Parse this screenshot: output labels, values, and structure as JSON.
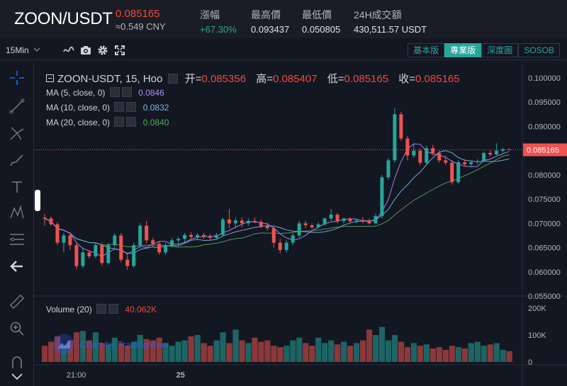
{
  "header": {
    "pair": "ZOON/USDT",
    "last_price": "0.085165",
    "cny_price": "≈0.549 CNY",
    "stats": [
      {
        "label": "漲幅",
        "value": "+67.30%",
        "positive": true
      },
      {
        "label": "最高價",
        "value": "0.093437",
        "positive": false
      },
      {
        "label": "最低價",
        "value": "0.050805",
        "positive": false
      },
      {
        "label": "24H成交額",
        "value": "430,511.57 USDT",
        "positive": false
      }
    ]
  },
  "toolbar": {
    "interval": "15Min",
    "icons": [
      "line-chart-icon",
      "camera-icon",
      "gear-icon",
      "fullscreen-icon"
    ],
    "views": [
      {
        "label": "基本版",
        "active": false
      },
      {
        "label": "專業版",
        "active": true
      },
      {
        "label": "深度圖",
        "active": false
      },
      {
        "label": "SOSOB",
        "active": false
      }
    ]
  },
  "left_tools": [
    "crosshair-icon",
    "trend-line-icon",
    "pitchfork-icon",
    "brush-icon",
    "text-icon",
    "pattern-icon",
    "fib-icon",
    "back-arrow-icon",
    "ruler-icon",
    "zoom-in-icon",
    "magnet-icon",
    "chevron-down-icon"
  ],
  "legend": {
    "symbol": "ZOON-USDT, 15, Hoo",
    "open_label": "开=",
    "open": "0.085356",
    "high_label": "高=",
    "high": "0.085407",
    "low_label": "低=",
    "low": "0.085165",
    "close_label": "收=",
    "close": "0.085165",
    "ma5_label": "MA (5, close, 0)",
    "ma5": "0.0846",
    "ma10_label": "MA (10, close, 0)",
    "ma10": "0.0832",
    "ma20_label": "MA (20, close, 0)",
    "ma20": "0.0840",
    "volume_label": "Volume (20)",
    "volume": "40.062K"
  },
  "watermark": "Chart by TradingView",
  "price_axis": {
    "ticks": [
      "0.100000",
      "0.095000",
      "0.090000",
      "0.085000",
      "0.080000",
      "0.075000",
      "0.070000",
      "0.065000",
      "0.060000",
      "0.055000"
    ],
    "current_label": "0.085165"
  },
  "volume_axis": {
    "ticks": [
      "200K",
      "100K",
      "0"
    ]
  },
  "time_axis": {
    "ticks": [
      {
        "label": "21:00",
        "i": 5
      },
      {
        "label": "25",
        "i": 21
      }
    ]
  },
  "colors": {
    "up": "#26a69a",
    "down": "#ef5350",
    "ma5": "#b58bff",
    "ma10": "#7cb6e6",
    "ma20": "#53a95a"
  },
  "chart_data": {
    "type": "candlestick",
    "price_range": [
      0.055,
      0.1
    ],
    "volume_range": [
      0,
      200000
    ],
    "current_price": 0.085165,
    "candles": [
      {
        "o": 0.0712,
        "h": 0.072,
        "l": 0.0695,
        "c": 0.071,
        "v": 60000
      },
      {
        "o": 0.071,
        "h": 0.0714,
        "l": 0.0695,
        "c": 0.0698,
        "v": 75000
      },
      {
        "o": 0.0698,
        "h": 0.0702,
        "l": 0.0655,
        "c": 0.066,
        "v": 95000
      },
      {
        "o": 0.066,
        "h": 0.068,
        "l": 0.064,
        "c": 0.0675,
        "v": 60000
      },
      {
        "o": 0.0675,
        "h": 0.0682,
        "l": 0.0645,
        "c": 0.0655,
        "v": 80000
      },
      {
        "o": 0.0655,
        "h": 0.066,
        "l": 0.0605,
        "c": 0.0612,
        "v": 110000
      },
      {
        "o": 0.0612,
        "h": 0.065,
        "l": 0.0608,
        "c": 0.064,
        "v": 115000
      },
      {
        "o": 0.064,
        "h": 0.0645,
        "l": 0.0628,
        "c": 0.0632,
        "v": 80000
      },
      {
        "o": 0.0632,
        "h": 0.066,
        "l": 0.0628,
        "c": 0.0655,
        "v": 110000
      },
      {
        "o": 0.0655,
        "h": 0.066,
        "l": 0.0612,
        "c": 0.0618,
        "v": 70000
      },
      {
        "o": 0.0618,
        "h": 0.066,
        "l": 0.0615,
        "c": 0.0655,
        "v": 65000
      },
      {
        "o": 0.0655,
        "h": 0.068,
        "l": 0.065,
        "c": 0.0675,
        "v": 90000
      },
      {
        "o": 0.0675,
        "h": 0.068,
        "l": 0.062,
        "c": 0.0625,
        "v": 70000
      },
      {
        "o": 0.0625,
        "h": 0.064,
        "l": 0.0605,
        "c": 0.0612,
        "v": 60000
      },
      {
        "o": 0.0612,
        "h": 0.066,
        "l": 0.0608,
        "c": 0.0655,
        "v": 75000
      },
      {
        "o": 0.0655,
        "h": 0.07,
        "l": 0.065,
        "c": 0.0695,
        "v": 100000
      },
      {
        "o": 0.0695,
        "h": 0.0705,
        "l": 0.066,
        "c": 0.0665,
        "v": 85000
      },
      {
        "o": 0.0665,
        "h": 0.067,
        "l": 0.0652,
        "c": 0.0658,
        "v": 80000
      },
      {
        "o": 0.0658,
        "h": 0.0662,
        "l": 0.0635,
        "c": 0.064,
        "v": 90000
      },
      {
        "o": 0.064,
        "h": 0.066,
        "l": 0.0635,
        "c": 0.0655,
        "v": 70000
      },
      {
        "o": 0.0655,
        "h": 0.067,
        "l": 0.065,
        "c": 0.0665,
        "v": 60000
      },
      {
        "o": 0.0665,
        "h": 0.0672,
        "l": 0.0655,
        "c": 0.0668,
        "v": 75000
      },
      {
        "o": 0.0668,
        "h": 0.068,
        "l": 0.0662,
        "c": 0.0676,
        "v": 80000
      },
      {
        "o": 0.0676,
        "h": 0.0682,
        "l": 0.0668,
        "c": 0.0672,
        "v": 95000
      },
      {
        "o": 0.0672,
        "h": 0.068,
        "l": 0.0665,
        "c": 0.0676,
        "v": 100000
      },
      {
        "o": 0.0676,
        "h": 0.068,
        "l": 0.0668,
        "c": 0.0672,
        "v": 70000
      },
      {
        "o": 0.0672,
        "h": 0.0678,
        "l": 0.0665,
        "c": 0.067,
        "v": 60000
      },
      {
        "o": 0.067,
        "h": 0.068,
        "l": 0.0668,
        "c": 0.0676,
        "v": 80000
      },
      {
        "o": 0.0676,
        "h": 0.0712,
        "l": 0.0672,
        "c": 0.0708,
        "v": 110000
      },
      {
        "o": 0.0708,
        "h": 0.073,
        "l": 0.069,
        "c": 0.07,
        "v": 70000
      },
      {
        "o": 0.07,
        "h": 0.0712,
        "l": 0.069,
        "c": 0.0706,
        "v": 120000
      },
      {
        "o": 0.0706,
        "h": 0.0712,
        "l": 0.0692,
        "c": 0.07,
        "v": 80000
      },
      {
        "o": 0.07,
        "h": 0.071,
        "l": 0.0695,
        "c": 0.0705,
        "v": 70000
      },
      {
        "o": 0.0705,
        "h": 0.0712,
        "l": 0.07,
        "c": 0.0703,
        "v": 90000
      },
      {
        "o": 0.0703,
        "h": 0.0708,
        "l": 0.069,
        "c": 0.0694,
        "v": 75000
      },
      {
        "o": 0.0694,
        "h": 0.0702,
        "l": 0.0685,
        "c": 0.069,
        "v": 80000
      },
      {
        "o": 0.069,
        "h": 0.0692,
        "l": 0.065,
        "c": 0.066,
        "v": 60000
      },
      {
        "o": 0.066,
        "h": 0.0668,
        "l": 0.0638,
        "c": 0.0645,
        "v": 55000
      },
      {
        "o": 0.0645,
        "h": 0.0665,
        "l": 0.064,
        "c": 0.066,
        "v": 60000
      },
      {
        "o": 0.066,
        "h": 0.068,
        "l": 0.0655,
        "c": 0.0675,
        "v": 80000
      },
      {
        "o": 0.0675,
        "h": 0.0705,
        "l": 0.067,
        "c": 0.07,
        "v": 90000
      },
      {
        "o": 0.07,
        "h": 0.0705,
        "l": 0.069,
        "c": 0.0696,
        "v": 70000
      },
      {
        "o": 0.0696,
        "h": 0.07,
        "l": 0.0688,
        "c": 0.0692,
        "v": 60000
      },
      {
        "o": 0.0692,
        "h": 0.0702,
        "l": 0.069,
        "c": 0.0698,
        "v": 90000
      },
      {
        "o": 0.0698,
        "h": 0.0712,
        "l": 0.0695,
        "c": 0.071,
        "v": 70000
      },
      {
        "o": 0.071,
        "h": 0.073,
        "l": 0.0705,
        "c": 0.0718,
        "v": 80000
      },
      {
        "o": 0.0718,
        "h": 0.0722,
        "l": 0.07,
        "c": 0.0705,
        "v": 65000
      },
      {
        "o": 0.0705,
        "h": 0.0712,
        "l": 0.07,
        "c": 0.071,
        "v": 75000
      },
      {
        "o": 0.071,
        "h": 0.0712,
        "l": 0.07,
        "c": 0.0704,
        "v": 60000
      },
      {
        "o": 0.0704,
        "h": 0.071,
        "l": 0.07,
        "c": 0.0706,
        "v": 70000
      },
      {
        "o": 0.0706,
        "h": 0.0712,
        "l": 0.07,
        "c": 0.0704,
        "v": 80000
      },
      {
        "o": 0.0704,
        "h": 0.071,
        "l": 0.0698,
        "c": 0.07,
        "v": 120000
      },
      {
        "o": 0.07,
        "h": 0.072,
        "l": 0.0698,
        "c": 0.0715,
        "v": 100000
      },
      {
        "o": 0.0715,
        "h": 0.08,
        "l": 0.071,
        "c": 0.0795,
        "v": 130000
      },
      {
        "o": 0.0795,
        "h": 0.0835,
        "l": 0.079,
        "c": 0.083,
        "v": 80000
      },
      {
        "o": 0.083,
        "h": 0.0937,
        "l": 0.0825,
        "c": 0.0925,
        "v": 100000
      },
      {
        "o": 0.0925,
        "h": 0.093,
        "l": 0.087,
        "c": 0.0875,
        "v": 75000
      },
      {
        "o": 0.0875,
        "h": 0.088,
        "l": 0.083,
        "c": 0.084,
        "v": 55000
      },
      {
        "o": 0.084,
        "h": 0.0865,
        "l": 0.0835,
        "c": 0.085,
        "v": 70000
      },
      {
        "o": 0.085,
        "h": 0.0855,
        "l": 0.082,
        "c": 0.0825,
        "v": 60000
      },
      {
        "o": 0.0825,
        "h": 0.086,
        "l": 0.082,
        "c": 0.0855,
        "v": 65000
      },
      {
        "o": 0.0855,
        "h": 0.0862,
        "l": 0.084,
        "c": 0.0845,
        "v": 50000
      },
      {
        "o": 0.0845,
        "h": 0.085,
        "l": 0.0825,
        "c": 0.083,
        "v": 55000
      },
      {
        "o": 0.083,
        "h": 0.084,
        "l": 0.082,
        "c": 0.0825,
        "v": 45000
      },
      {
        "o": 0.0825,
        "h": 0.083,
        "l": 0.078,
        "c": 0.0785,
        "v": 60000
      },
      {
        "o": 0.0785,
        "h": 0.083,
        "l": 0.0782,
        "c": 0.0826,
        "v": 55000
      },
      {
        "o": 0.0826,
        "h": 0.0832,
        "l": 0.0818,
        "c": 0.0822,
        "v": 50000
      },
      {
        "o": 0.0822,
        "h": 0.083,
        "l": 0.0818,
        "c": 0.0826,
        "v": 70000
      },
      {
        "o": 0.0826,
        "h": 0.0832,
        "l": 0.0822,
        "c": 0.0828,
        "v": 75000
      },
      {
        "o": 0.0828,
        "h": 0.0848,
        "l": 0.0826,
        "c": 0.0845,
        "v": 60000
      },
      {
        "o": 0.0845,
        "h": 0.085,
        "l": 0.0838,
        "c": 0.0842,
        "v": 65000
      },
      {
        "o": 0.0842,
        "h": 0.0865,
        "l": 0.084,
        "c": 0.085,
        "v": 70000
      },
      {
        "o": 0.085,
        "h": 0.0856,
        "l": 0.0846,
        "c": 0.0853,
        "v": 45000
      },
      {
        "o": 0.0853,
        "h": 0.0854,
        "l": 0.0851,
        "c": 0.08517,
        "v": 40062
      }
    ]
  }
}
